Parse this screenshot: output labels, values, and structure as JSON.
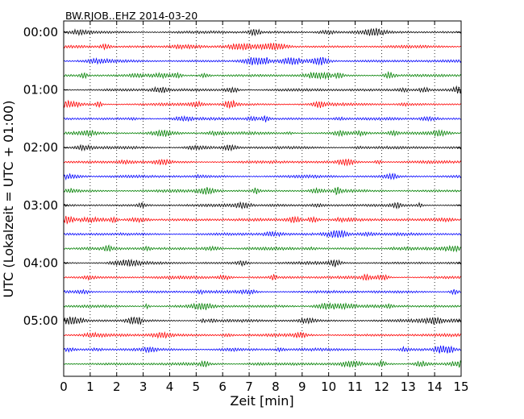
{
  "chart_data": {
    "type": "line",
    "title": "BW.RJOB..EHZ 2014-03-20",
    "xlabel": "Zeit  [min]",
    "ylabel": "UTC (Lokalzeit = UTC + 01:00)",
    "xlim": [
      0,
      15
    ],
    "x_ticks": [
      0,
      1,
      2,
      3,
      4,
      5,
      6,
      7,
      8,
      9,
      10,
      11,
      12,
      13,
      14,
      15
    ],
    "y_tick_labels": [
      "00:00",
      "01:00",
      "02:00",
      "03:00",
      "04:00",
      "05:00"
    ],
    "row_interval_minutes": 15,
    "num_rows": 24,
    "trace_colors": [
      "#000000",
      "#ff0000",
      "#0000ff",
      "#008000"
    ],
    "grid": "vertical dotted lines at each minute"
  }
}
